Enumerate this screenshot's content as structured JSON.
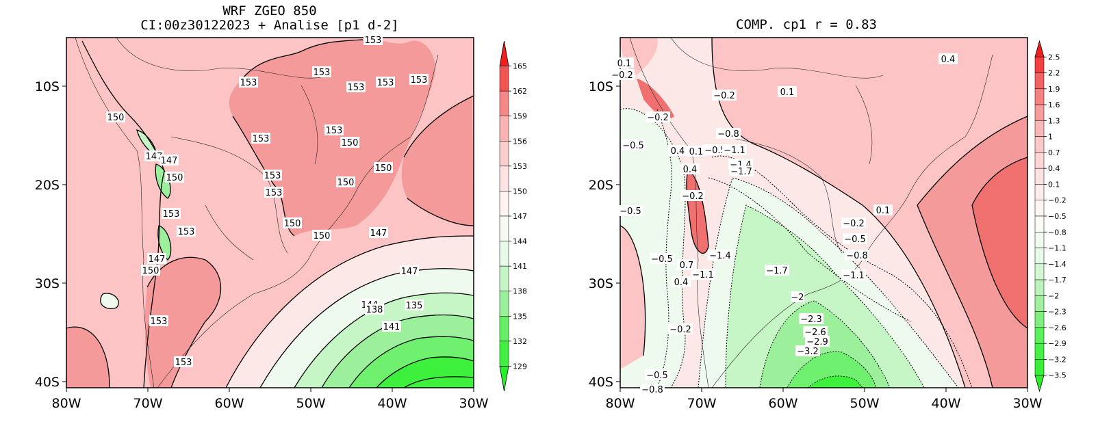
{
  "left_panel": {
    "title_line1": "WRF ZGEO 850",
    "title_line2": "CI:00z30122023 + Analise  [p1 d-2]",
    "lon_ticks": [
      "80W",
      "70W",
      "60W",
      "50W",
      "40W",
      "30W"
    ],
    "lat_ticks": [
      "10S",
      "20S",
      "30S",
      "40S"
    ],
    "colorbar_labels": [
      "165",
      "162",
      "159",
      "156",
      "153",
      "150",
      "147",
      "144",
      "141",
      "138",
      "135",
      "132",
      "129"
    ],
    "contour_labels": [
      "153",
      "153",
      "153",
      "153",
      "153",
      "153",
      "153",
      "150",
      "150",
      "150",
      "153",
      "150",
      "150",
      "153",
      "153",
      "150",
      "147",
      "144",
      "141",
      "138",
      "135",
      "147",
      "150",
      "153",
      "153",
      "153",
      "150",
      "150",
      "153",
      "147",
      "147",
      "147"
    ],
    "colors": {
      "base": "#fcc4c4",
      "high": "#f59a9a",
      "higher": "#f07070",
      "low1": "#fde8e8",
      "low2": "#eefaee",
      "low3": "#c6f5c6",
      "low4": "#9cf09c",
      "low5": "#6ff06f",
      "low6": "#3cf03c"
    }
  },
  "right_panel": {
    "title": "COMP. cp1  r =  0.83",
    "lon_ticks": [
      "80W",
      "70W",
      "60W",
      "50W",
      "40W",
      "30W"
    ],
    "lat_ticks": [
      "10S",
      "20S",
      "30S",
      "40S"
    ],
    "colorbar_labels": [
      "2.5",
      "2.2",
      "1.9",
      "1.6",
      "1.3",
      "1",
      "0.7",
      "0.4",
      "0.1",
      "−0.2",
      "−0.5",
      "−0.8",
      "−1.1",
      "−1.4",
      "−1.7",
      "−2",
      "−2.3",
      "−2.6",
      "−2.9",
      "−3.2",
      "−3.5"
    ],
    "contour_labels": [
      "0.1",
      "−0.2",
      "−0.2",
      "0.1",
      "0.4",
      "−0.2",
      "−0.8",
      "−0.5",
      "0.4",
      "0.1",
      "−0.5",
      "−1.1",
      "−1.4",
      "−1.7",
      "0.4",
      "−0.2",
      "−0.5",
      "−0.5",
      "0.7",
      "−1.1",
      "0.4",
      "−1.4",
      "−1.7",
      "−0.2",
      "−0.5",
      "−0.8",
      "−1.1",
      "0.1",
      "−2",
      "−2.3",
      "−2.6",
      "−2.9",
      "−3.2",
      "−0.2",
      "−0.5",
      "−0.8"
    ]
  }
}
